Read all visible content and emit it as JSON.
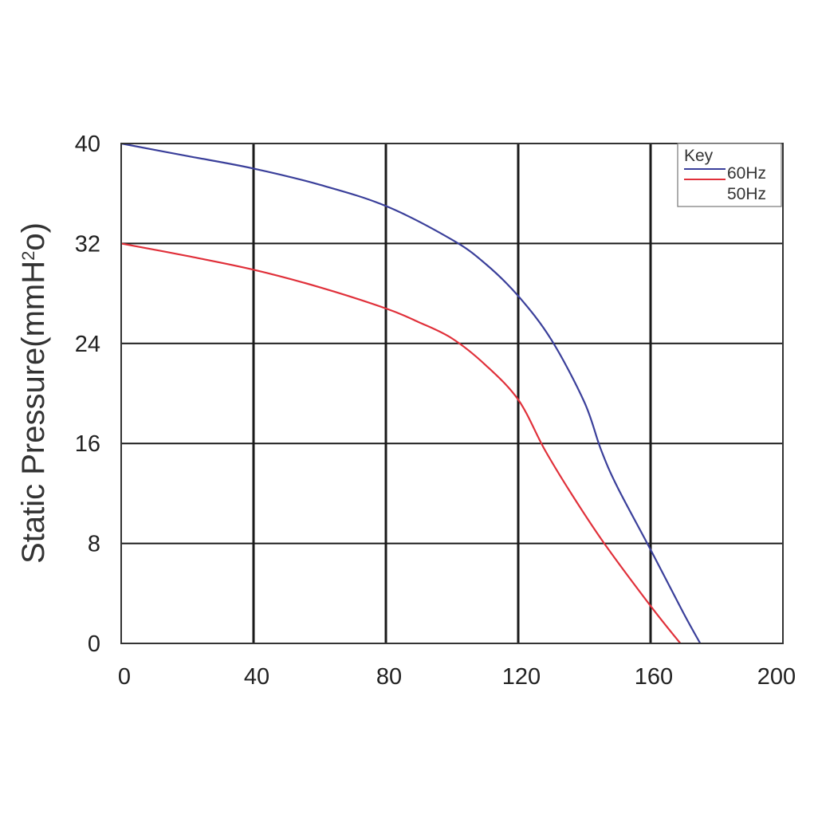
{
  "chart_data": {
    "type": "line",
    "ylabel": "Static Pressure(mmH",
    "ylabel_superscript": "2",
    "ylabel_suffix": "o)",
    "xlabel": "",
    "xlim": [
      0,
      200
    ],
    "ylim": [
      0,
      40
    ],
    "x_ticks": [
      "0",
      "40",
      "80",
      "120",
      "160",
      "200"
    ],
    "y_ticks": [
      "0",
      "8",
      "16",
      "24",
      "32",
      "40"
    ],
    "grid": true,
    "legend": {
      "title": "Key",
      "placement": "top-right",
      "entries": [
        "60Hz",
        "50Hz"
      ]
    },
    "series": [
      {
        "name": "60Hz",
        "color": "#3a3f9a",
        "points": [
          [
            0,
            40
          ],
          [
            20,
            39
          ],
          [
            40,
            38
          ],
          [
            60,
            36.7
          ],
          [
            80,
            35
          ],
          [
            100,
            32.3
          ],
          [
            110,
            30.4
          ],
          [
            120,
            27.8
          ],
          [
            130,
            24.3
          ],
          [
            140,
            19.3
          ],
          [
            145,
            15.5
          ],
          [
            150,
            12.5
          ],
          [
            160,
            7.5
          ],
          [
            170,
            2.4
          ],
          [
            175,
            0
          ]
        ]
      },
      {
        "name": "50Hz",
        "color": "#e0303a",
        "points": [
          [
            0,
            32
          ],
          [
            20,
            31
          ],
          [
            40,
            29.9
          ],
          [
            60,
            28.5
          ],
          [
            80,
            26.8
          ],
          [
            90,
            25.7
          ],
          [
            100,
            24.4
          ],
          [
            110,
            22.3
          ],
          [
            120,
            19.5
          ],
          [
            128,
            15.5
          ],
          [
            136,
            12
          ],
          [
            146,
            8
          ],
          [
            160,
            3
          ],
          [
            169,
            0
          ]
        ]
      }
    ]
  }
}
